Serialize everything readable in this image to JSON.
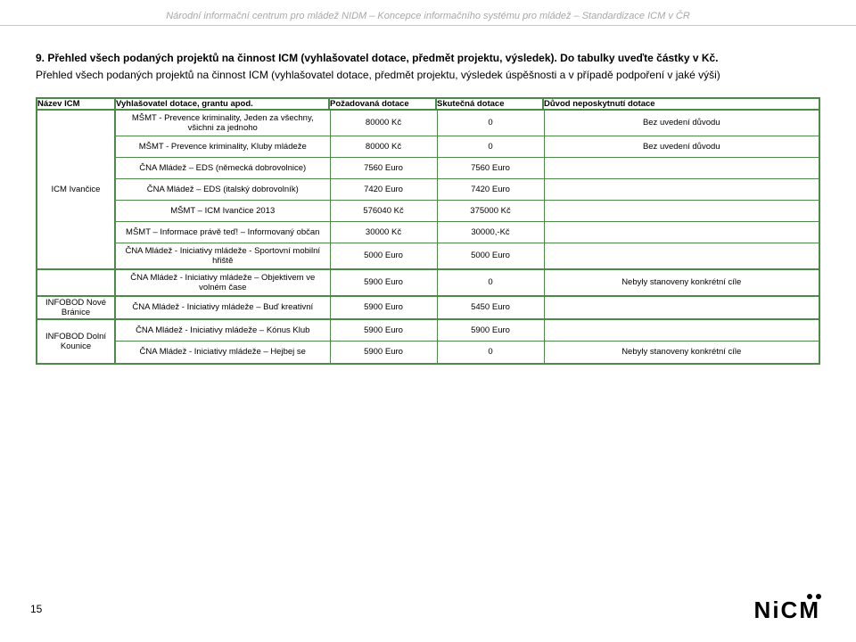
{
  "header": "Národní informační centrum pro mládež NIDM – Koncepce informačního systému pro mládež – Standardizace ICM v ČR",
  "section": {
    "title": "9. Přehled všech podaných projektů na činnost ICM (vyhlašovatel dotace, předmět projektu, výsledek). Do tabulky uveďte částky v Kč.",
    "sub": "Přehled všech podaných projektů na činnost ICM (vyhlašovatel dotace, předmět projektu, výsledek úspěšnosti a v případě podpoření v jaké výši)"
  },
  "cols": {
    "name": "Název ICM",
    "vyhl": "Vyhlašovatel dotace, grantu apod.",
    "poz": "Požadovaná dotace",
    "skut": "Skutečná dotace",
    "duv": "Důvod neposkytnutí dotace"
  },
  "block1": {
    "name": "ICM Ivančice",
    "rows": [
      {
        "v": "MŠMT - Prevence kriminality, Jeden za všechny, všichni za jednoho",
        "p": "80000 Kč",
        "s": "0",
        "d": "Bez uvedení důvodu"
      },
      {
        "v": "MŠMT - Prevence kriminality, Kluby mládeže",
        "p": "80000 Kč",
        "s": "0",
        "d": "Bez uvedení důvodu"
      },
      {
        "v": "ČNA Mládež – EDS (německá dobrovolnice)",
        "p": "7560 Euro",
        "s": "7560 Euro",
        "d": ""
      },
      {
        "v": "ČNA Mládež – EDS (italský dobrovolník)",
        "p": "7420 Euro",
        "s": "7420 Euro",
        "d": ""
      },
      {
        "v": "MŠMT – ICM Ivančice 2013",
        "p": "576040 Kč",
        "s": "375000 Kč",
        "d": ""
      },
      {
        "v": "MŠMT – Informace právě teď! – Informovaný občan",
        "p": "30000 Kč",
        "s": "30000,-Kč",
        "d": ""
      },
      {
        "v": "ČNA Mládež - Iniciativy mládeže - Sportovní mobilní hřiště",
        "p": "5000 Euro",
        "s": "5000 Euro",
        "d": ""
      }
    ]
  },
  "block2": {
    "name": "",
    "rows": [
      {
        "v": "ČNA Mládež - Iniciativy mládeže – Objektivem ve volném čase",
        "p": "5900 Euro",
        "s": "0",
        "d": "Nebyly stanoveny konkrétní cíle"
      }
    ]
  },
  "block3": {
    "name": "INFOBOD Nové Bránice",
    "rows": [
      {
        "v": "ČNA Mládež - Iniciativy mládeže – Buď kreativní",
        "p": "5900 Euro",
        "s": "5450 Euro",
        "d": ""
      }
    ]
  },
  "block4": {
    "name": "INFOBOD Dolní Kounice",
    "rows": [
      {
        "v": "ČNA Mládež - Iniciativy mládeže – Kónus Klub",
        "p": "5900 Euro",
        "s": "5900 Euro",
        "d": ""
      },
      {
        "v": "ČNA Mládež - Iniciativy mládeže – Hejbej se",
        "p": "5900 Euro",
        "s": "0",
        "d": "Nebyly stanoveny konkrétní cíle"
      }
    ]
  },
  "pageNumber": "15",
  "logo": "NiCM"
}
